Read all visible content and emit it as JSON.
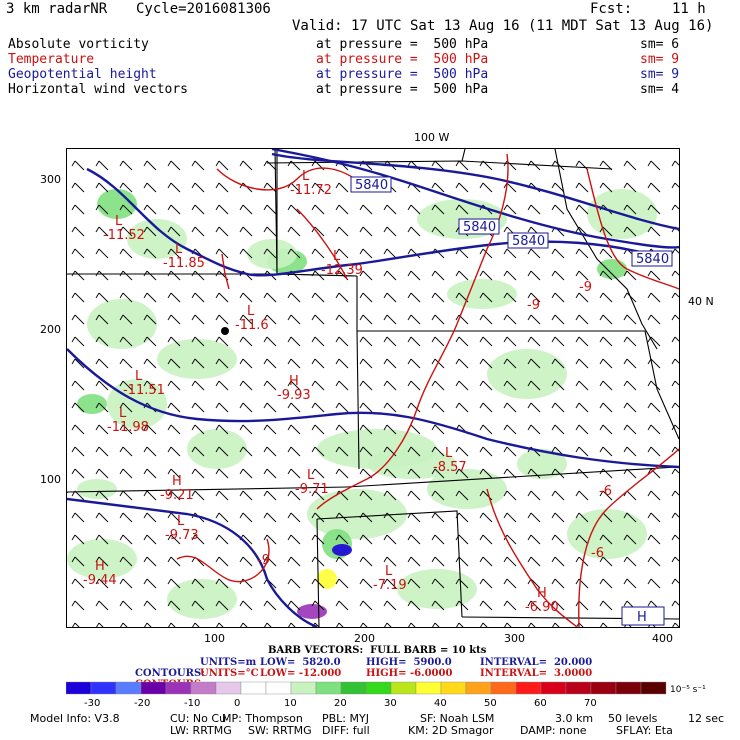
{
  "header": {
    "model": "3 km radarNR",
    "cycle": "Cycle=2016081306",
    "fcst_label": "Fcst:",
    "fcst_value": "11 h",
    "valid": "Valid: 17 UTC Sat 13 Aug 16 (11 MDT Sat 13 Aug 16)"
  },
  "fields": [
    {
      "name": "Absolute vorticity",
      "pressure": "at pressure =  500 hPa",
      "sm": "sm= 6",
      "color": "#000000"
    },
    {
      "name": "Temperature",
      "pressure": "at pressure =  500 hPa",
      "sm": "sm= 9",
      "color": "#cc1111"
    },
    {
      "name": "Geopotential height",
      "pressure": "at pressure =  500 hPa",
      "sm": "sm= 9",
      "color": "#1a1a99"
    },
    {
      "name": "Horizontal wind vectors",
      "pressure": "at pressure =  500 hPa",
      "sm": "sm= 4",
      "color": "#000000"
    }
  ],
  "map": {
    "top_label": "100 W",
    "right_label": "40 N",
    "y_ticks": [
      "300",
      "200",
      "100"
    ],
    "x_ticks": [
      "100",
      "200",
      "300",
      "400"
    ],
    "height_labels": [
      "5840",
      "5840",
      "5840",
      "5840"
    ],
    "temp_labels": [
      {
        "text": "L",
        "value": "-11.72"
      },
      {
        "text": "L",
        "value": "-11.52"
      },
      {
        "text": "L",
        "value": "-11.85"
      },
      {
        "text": "L",
        "value": "-12.39"
      },
      {
        "text": "L",
        "value": "-11.6"
      },
      {
        "text": "L",
        "value": "-11.51"
      },
      {
        "text": "H",
        "value": "-9.93"
      },
      {
        "text": "L",
        "value": "-11.98"
      },
      {
        "text": "H",
        "value": "-9.21"
      },
      {
        "text": "L",
        "value": "-9.73"
      },
      {
        "text": "H",
        "value": "-9.44"
      },
      {
        "text": "L",
        "value": "-8.57"
      },
      {
        "text": "L",
        "value": "-7.19"
      },
      {
        "text": "L",
        "value": "-9.71"
      },
      {
        "text": "H",
        "value": "-6.90"
      }
    ],
    "contour_labels": [
      "-9",
      "-9",
      "-9",
      "-6",
      "-6"
    ],
    "h_box": "H",
    "colors": {
      "geopotential": "#1a1a99",
      "temperature": "#cc1111",
      "vorticity_light": "#c8f2c0",
      "vorticity_mid": "#7fe07f"
    }
  },
  "barb_legend": "BARB VECTORS:  FULL BARB = 10 kts",
  "contours": [
    {
      "label": "CONTOURS:",
      "units": "UNITS=m",
      "low": "LOW=  5820.0",
      "high": "HIGH=  5900.0",
      "interval": "INTERVAL=  20.000",
      "color": "#1a1a99"
    },
    {
      "label": "CONTOURS:",
      "units": "UNITS=°C",
      "low": "LOW= -12.000",
      "high": "HIGH= -6.0000",
      "interval": "INTERVAL=  3.0000",
      "color": "#cc1111"
    }
  ],
  "colorbar": {
    "colors": [
      "#1a00d9",
      "#3033ff",
      "#5a7cff",
      "#6a00a8",
      "#9a33b8",
      "#c37cc8",
      "#e6c8ea",
      "#ffffff",
      "#ffffff",
      "#c8f2c0",
      "#7fe07f",
      "#33c233",
      "#33d91a",
      "#b8e61a",
      "#ffff33",
      "#ffd91a",
      "#ffa31a",
      "#ff6a1a",
      "#ff1a1a",
      "#d9001a",
      "#b8001a",
      "#9a0010",
      "#7a000a",
      "#5a0000"
    ],
    "labels": [
      "-30",
      "-20",
      "-10",
      "0",
      "10",
      "20",
      "30",
      "40",
      "50",
      "60",
      "70"
    ],
    "unit": "10⁻⁵ s⁻¹"
  },
  "footer": {
    "line1": [
      "Model Info: V3.8",
      "CU: No Cu",
      "MP: Thompson",
      "PBL: MYJ",
      "SF: Noah LSM",
      "3.0 km",
      "50 levels",
      "12 sec"
    ],
    "line2": [
      "LW: RRTMG",
      "SW: RRTMG",
      "DIFF: full",
      "KM: 2D Smagor",
      "DAMP: none",
      "SFLAY: Eta"
    ]
  }
}
